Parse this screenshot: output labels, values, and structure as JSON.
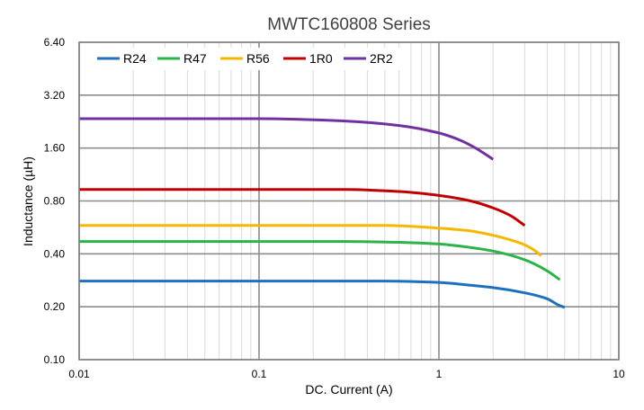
{
  "chart_data": {
    "type": "line",
    "title": "MWTC160808 Series",
    "xlabel": "DC. Current (A)",
    "ylabel": "Inductance (µH)",
    "x_scale": "log",
    "y_scale": "log",
    "xlim": [
      0.01,
      10
    ],
    "ylim": [
      0.1,
      6.4
    ],
    "x_ticks": [
      "0.01",
      "0.1",
      "1",
      "10"
    ],
    "y_ticks": [
      "0.10",
      "0.20",
      "0.40",
      "0.80",
      "1.60",
      "3.20",
      "6.40"
    ],
    "grid": true,
    "legend_position": "top-left",
    "series": [
      {
        "name": "R24",
        "color": "#1f6fbf",
        "points": [
          [
            0.01,
            0.28
          ],
          [
            0.1,
            0.28
          ],
          [
            0.5,
            0.28
          ],
          [
            1.0,
            0.275
          ],
          [
            1.5,
            0.265
          ],
          [
            2.0,
            0.257
          ],
          [
            3.0,
            0.24
          ],
          [
            4.0,
            0.222
          ],
          [
            4.6,
            0.205
          ],
          [
            5.0,
            0.198
          ]
        ]
      },
      {
        "name": "R47",
        "color": "#2db34a",
        "points": [
          [
            0.01,
            0.47
          ],
          [
            0.3,
            0.47
          ],
          [
            0.6,
            0.465
          ],
          [
            1.0,
            0.455
          ],
          [
            1.5,
            0.435
          ],
          [
            2.0,
            0.415
          ],
          [
            3.0,
            0.37
          ],
          [
            4.0,
            0.32
          ],
          [
            4.7,
            0.285
          ]
        ]
      },
      {
        "name": "R56",
        "color": "#f5b800",
        "points": [
          [
            0.01,
            0.58
          ],
          [
            0.5,
            0.58
          ],
          [
            1.0,
            0.56
          ],
          [
            1.5,
            0.54
          ],
          [
            2.0,
            0.51
          ],
          [
            2.5,
            0.48
          ],
          [
            3.0,
            0.45
          ],
          [
            3.5,
            0.41
          ],
          [
            3.7,
            0.39
          ]
        ]
      },
      {
        "name": "1R0",
        "color": "#c00000",
        "points": [
          [
            0.01,
            0.93
          ],
          [
            0.3,
            0.93
          ],
          [
            0.6,
            0.905
          ],
          [
            1.0,
            0.86
          ],
          [
            1.5,
            0.8
          ],
          [
            2.0,
            0.73
          ],
          [
            2.5,
            0.66
          ],
          [
            3.0,
            0.58
          ]
        ]
      },
      {
        "name": "2R2",
        "color": "#7030a0",
        "points": [
          [
            0.01,
            2.35
          ],
          [
            0.1,
            2.35
          ],
          [
            0.3,
            2.28
          ],
          [
            0.6,
            2.15
          ],
          [
            1.0,
            1.95
          ],
          [
            1.3,
            1.78
          ],
          [
            1.6,
            1.6
          ],
          [
            2.0,
            1.38
          ]
        ]
      }
    ]
  }
}
